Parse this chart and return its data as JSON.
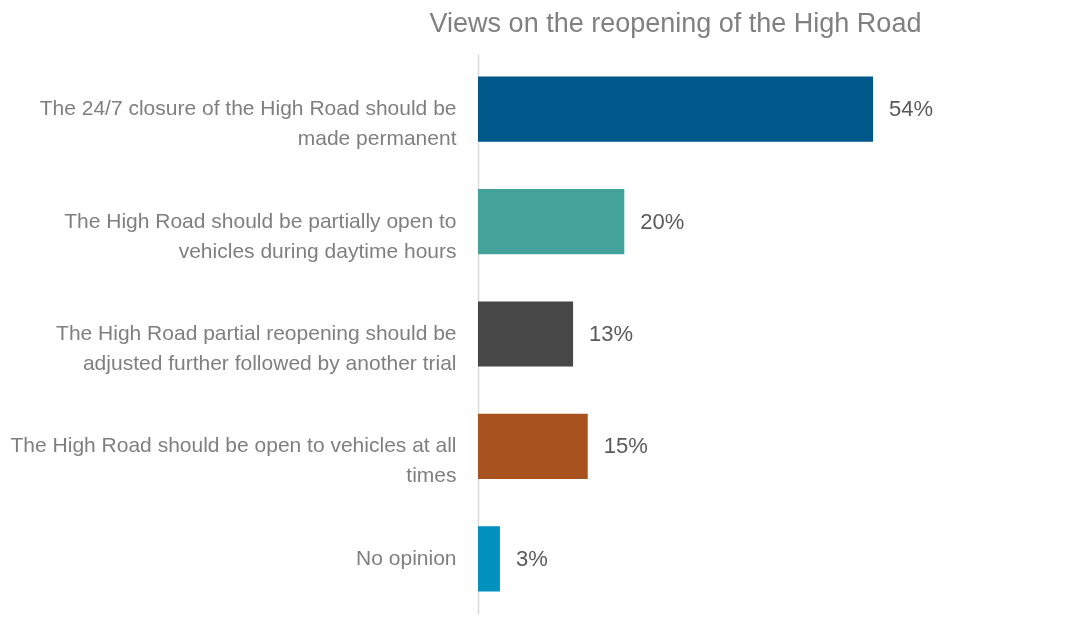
{
  "chart_data": {
    "type": "bar",
    "orientation": "horizontal",
    "title": "Views on the reopening of the High Road",
    "categories": [
      "The 24/7 closure of the High Road should be made permanent",
      "The High Road should be partially open to vehicles during daytime hours",
      "The High Road partial reopening should be adjusted further followed by another trial",
      "The High Road should be open to vehicles at all times",
      "No opinion"
    ],
    "values": [
      54,
      20,
      13,
      15,
      3
    ],
    "value_labels": [
      "54%",
      "20%",
      "13%",
      "15%",
      "3%"
    ],
    "colors": [
      "#00578a",
      "#43a39a",
      "#474747",
      "#a8531f",
      "#0391c0"
    ],
    "grid": false,
    "legend": false
  }
}
